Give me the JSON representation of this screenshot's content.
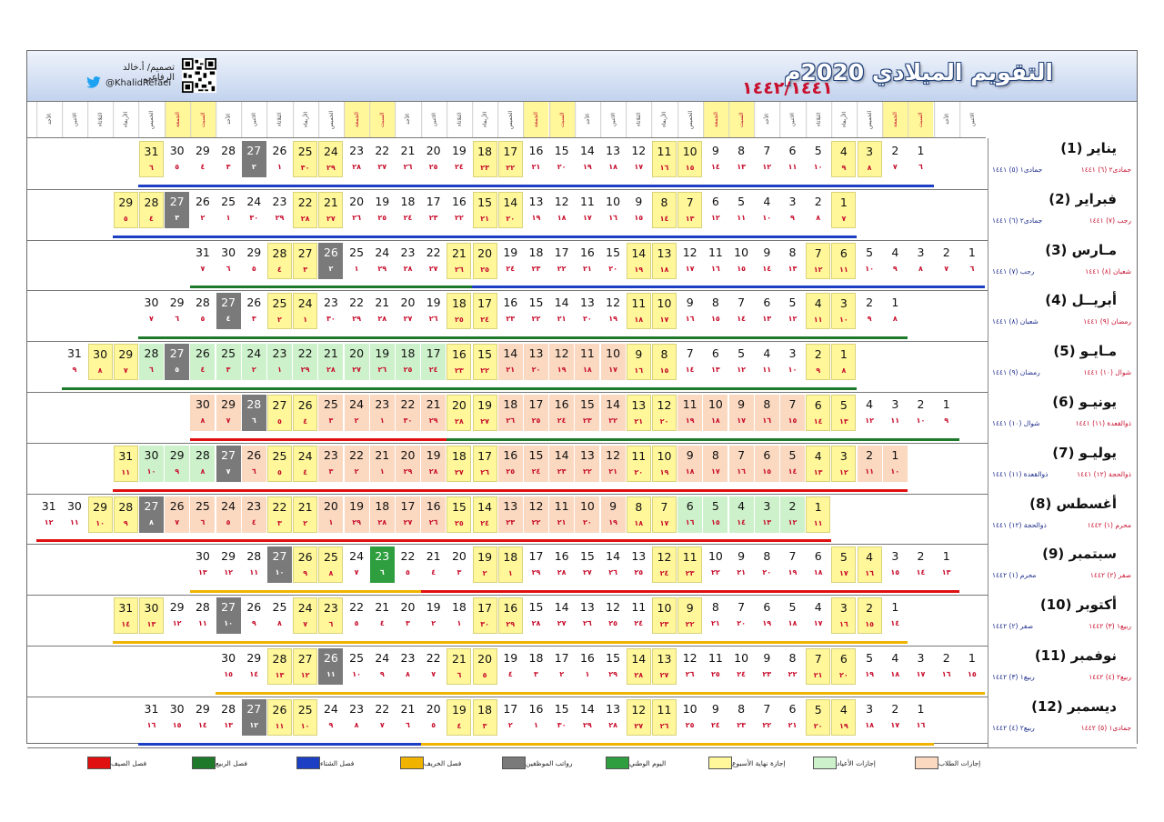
{
  "header": {
    "title": "التقويم الميلادي 2020م",
    "hijri_years": "١٤٤٢/١٤٤١",
    "designer": "تصميم/ أ.خالد الرفاعي",
    "handle": "@KhalidRefaei"
  },
  "day_names": [
    "الاثنين",
    "الأحد",
    "السبت",
    "الجمعة",
    "الخميس",
    "الأربعاء",
    "الثلاثاء",
    "الاثنين",
    "الأحد",
    "السبت",
    "الجمعة",
    "الخميس",
    "الأربعاء",
    "الثلاثاء",
    "الاثنين",
    "الأحد",
    "السبت",
    "الجمعة",
    "الخميس",
    "الأربعاء",
    "الثلاثاء",
    "الاثنين",
    "الأحد",
    "السبت",
    "الجمعة",
    "الخميس",
    "الأربعاء",
    "الثلاثاء",
    "الاثنين",
    "الأحد",
    "السبت",
    "الجمعة",
    "الخميس",
    "الأربعاء",
    "الثلاثاء",
    "الاثنين",
    "الأحد"
  ],
  "weekend_day_columns": [
    2,
    3,
    9,
    10,
    16,
    17,
    23,
    24,
    30,
    31
  ],
  "colors": {
    "weekend": "#fff79a",
    "students": "#fbd8c0",
    "eid": "#cdf2cb",
    "national": "#2e9e3f",
    "payday": "#7a7a7a",
    "winter": "#1d3fc4",
    "spring": "#1e7a2a",
    "summer": "#e01010",
    "autumn": "#f0b400"
  },
  "months": [
    {
      "name": "يناير (1)",
      "start_col": 2,
      "hijri_start": "٦",
      "hijri_left": "جمادى١ (٥) ١٤٤١",
      "hijri_right": "جمادى٢ (٦) ١٤٤١",
      "h": [
        "٦",
        "٧",
        "٨",
        "٩",
        "١٠",
        "١١",
        "١٢",
        "١٣",
        "١٤",
        "١٥",
        "١٦",
        "١٧",
        "١٨",
        "١٩",
        "٢٠",
        "٢١",
        "٢٢",
        "٢٣",
        "٢٤",
        "٢٥",
        "٢٦",
        "٢٧",
        "٢٨",
        "٢٩",
        "٣٠",
        "١",
        "٢",
        "٣",
        "٤",
        "٥",
        "٦"
      ],
      "special": {
        "3": "w",
        "4": "w",
        "10": "w",
        "11": "w",
        "17": "w",
        "18": "w",
        "24": "w",
        "25": "w",
        "27": "p",
        "31": "w"
      },
      "bars": [
        {
          "from": 1,
          "to": 31,
          "season": "winter"
        }
      ]
    },
    {
      "name": "فبراير (2)",
      "start_col": 5,
      "hijri_left": "جمادى٢ (٦) ١٤٤١",
      "hijri_right": "رجب (٧) ١٤٤١",
      "h": [
        "٧",
        "٨",
        "٩",
        "١٠",
        "١١",
        "١٢",
        "١٣",
        "١٤",
        "١٥",
        "١٦",
        "١٧",
        "١٨",
        "١٩",
        "٢٠",
        "٢١",
        "٢٢",
        "٢٣",
        "٢٤",
        "٢٥",
        "٢٦",
        "٢٧",
        "٢٨",
        "٢٩",
        "٣٠",
        "١",
        "٢",
        "٣",
        "٤",
        "٥"
      ],
      "special": {
        "1": "w",
        "7": "w",
        "8": "w",
        "14": "w",
        "15": "w",
        "21": "w",
        "22": "w",
        "27": "p",
        "28": "w",
        "29": "w"
      },
      "bars": [
        {
          "from": 1,
          "to": 29,
          "season": "winter"
        }
      ]
    },
    {
      "name": "مـارس (3)",
      "start_col": 0,
      "hijri_left": "رجب (٧) ١٤٤١",
      "hijri_right": "شعبان (٨) ١٤٤١",
      "h": [
        "٦",
        "٧",
        "٨",
        "٩",
        "١٠",
        "١١",
        "١٢",
        "١٣",
        "١٤",
        "١٥",
        "١٦",
        "١٧",
        "١٨",
        "١٩",
        "٢٠",
        "٢١",
        "٢٢",
        "٢٣",
        "٢٤",
        "٢٥",
        "٢٦",
        "٢٧",
        "٢٨",
        "٢٩",
        "١",
        "٢",
        "٣",
        "٤",
        "٥",
        "٦",
        "٧"
      ],
      "special": {
        "6": "w",
        "7": "w",
        "13": "w",
        "14": "w",
        "20": "w",
        "21": "w",
        "26": "p",
        "27": "w",
        "28": "w"
      },
      "bars": [
        {
          "from": 1,
          "to": 20,
          "season": "winter"
        },
        {
          "from": 21,
          "to": 31,
          "season": "spring"
        }
      ]
    },
    {
      "name": "أبريــل (4)",
      "start_col": 3,
      "hijri_left": "شعبان (٨) ١٤٤١",
      "hijri_right": "رمضان (٩) ١٤٤١",
      "h": [
        "٨",
        "٩",
        "١٠",
        "١١",
        "١٢",
        "١٣",
        "١٤",
        "١٥",
        "١٦",
        "١٧",
        "١٨",
        "١٩",
        "٢٠",
        "٢١",
        "٢٢",
        "٢٣",
        "٢٤",
        "٢٥",
        "٢٦",
        "٢٧",
        "٢٨",
        "٢٩",
        "٣٠",
        "١",
        "٢",
        "٣",
        "٤",
        "٥",
        "٦",
        "٧"
      ],
      "special": {
        "3": "w",
        "4": "w",
        "10": "w",
        "11": "w",
        "17": "w",
        "18": "w",
        "24": "w",
        "25": "w",
        "27": "p"
      },
      "bars": [
        {
          "from": 1,
          "to": 30,
          "season": "spring"
        }
      ]
    },
    {
      "name": "مـايـو (5)",
      "start_col": 5,
      "hijri_left": "رمضان (٩) ١٤٤١",
      "hijri_right": "شوال (١٠) ١٤٤١",
      "h": [
        "٨",
        "٩",
        "١٠",
        "١١",
        "١٢",
        "١٣",
        "١٤",
        "١٥",
        "١٦",
        "١٧",
        "١٨",
        "١٩",
        "٢٠",
        "٢١",
        "٢٢",
        "٢٣",
        "٢٤",
        "٢٥",
        "٢٦",
        "٢٧",
        "٢٨",
        "٢٩",
        "١",
        "٢",
        "٣",
        "٤",
        "٥",
        "٦",
        "٧",
        "٨",
        "٩"
      ],
      "special": {
        "1": "w",
        "2": "w",
        "8": "w",
        "9": "w",
        "10": "s",
        "11": "s",
        "12": "s",
        "13": "s",
        "14": "s",
        "15": "w",
        "16": "w",
        "17": "e",
        "18": "e",
        "19": "e",
        "20": "e",
        "21": "e",
        "22": "e",
        "23": "e",
        "24": "e",
        "25": "e",
        "26": "e",
        "27": "p",
        "28": "e",
        "29": "w",
        "30": "w"
      },
      "bars": [
        {
          "from": 1,
          "to": 31,
          "season": "spring"
        }
      ]
    },
    {
      "name": "يونيـو (6)",
      "start_col": 1,
      "hijri_left": "شوال (١٠) ١٤٤١",
      "hijri_right": "ذوالقعدة (١١) ١٤٤١",
      "h": [
        "٩",
        "١٠",
        "١١",
        "١٢",
        "١٣",
        "١٤",
        "١٥",
        "١٦",
        "١٧",
        "١٨",
        "١٩",
        "٢٠",
        "٢١",
        "٢٢",
        "٢٣",
        "٢٤",
        "٢٥",
        "٢٦",
        "٢٧",
        "٢٨",
        "٢٩",
        "٣٠",
        "١",
        "٢",
        "٣",
        "٤",
        "٥",
        "٦",
        "٧",
        "٨"
      ],
      "special": {
        "5": "w",
        "6": "w",
        "7": "s",
        "8": "s",
        "9": "s",
        "10": "s",
        "11": "s",
        "12": "w",
        "13": "w",
        "14": "s",
        "15": "s",
        "16": "s",
        "17": "s",
        "18": "s",
        "19": "w",
        "20": "w",
        "21": "s",
        "22": "s",
        "23": "s",
        "24": "s",
        "25": "s",
        "26": "w",
        "27": "w",
        "28": "p",
        "29": "s",
        "30": "s"
      },
      "bars": [
        {
          "from": 1,
          "to": 20,
          "season": "spring"
        },
        {
          "from": 21,
          "to": 30,
          "season": "summer"
        }
      ]
    },
    {
      "name": "يوليـو (7)",
      "start_col": 3,
      "hijri_left": "ذوالقعدة (١١) ١٤٤١",
      "hijri_right": "ذوالحجة (١٢) ١٤٤١",
      "h": [
        "١٠",
        "١١",
        "١٢",
        "١٣",
        "١٤",
        "١٥",
        "١٦",
        "١٧",
        "١٨",
        "١٩",
        "٢٠",
        "٢١",
        "٢٢",
        "٢٣",
        "٢٤",
        "٢٥",
        "٢٦",
        "٢٧",
        "٢٨",
        "٢٩",
        "١",
        "٢",
        "٣",
        "٤",
        "٥",
        "٦",
        "٧",
        "٨",
        "٩",
        "١٠",
        "١١"
      ],
      "special": {
        "1": "s",
        "2": "s",
        "3": "w",
        "4": "w",
        "5": "s",
        "6": "s",
        "7": "s",
        "8": "s",
        "9": "s",
        "10": "w",
        "11": "w",
        "12": "s",
        "13": "s",
        "14": "s",
        "15": "s",
        "16": "s",
        "17": "w",
        "18": "w",
        "19": "s",
        "20": "s",
        "21": "s",
        "22": "s",
        "23": "s",
        "24": "w",
        "25": "w",
        "26": "s",
        "27": "p",
        "28": "e",
        "29": "e",
        "30": "e",
        "31": "w"
      },
      "bars": [
        {
          "from": 1,
          "to": 31,
          "season": "summer"
        }
      ]
    },
    {
      "name": "أغسطس (8)",
      "start_col": 6,
      "hijri_left": "ذوالحجة (١٢) ١٤٤١",
      "hijri_right": "محرم (١) ١٤٤٢",
      "h": [
        "١١",
        "١٢",
        "١٣",
        "١٤",
        "١٥",
        "١٦",
        "١٧",
        "١٨",
        "١٩",
        "٢٠",
        "٢١",
        "٢٢",
        "٢٣",
        "٢٤",
        "٢٥",
        "٢٦",
        "٢٧",
        "٢٨",
        "٢٩",
        "١",
        "٢",
        "٣",
        "٤",
        "٥",
        "٦",
        "٧",
        "٨",
        "٩",
        "١٠",
        "١١",
        "١٢"
      ],
      "special": {
        "1": "w",
        "2": "e",
        "3": "e",
        "4": "e",
        "5": "e",
        "6": "e",
        "7": "w",
        "8": "w",
        "9": "s",
        "10": "s",
        "11": "s",
        "12": "s",
        "13": "s",
        "14": "w",
        "15": "w",
        "16": "s",
        "17": "s",
        "18": "s",
        "19": "s",
        "20": "s",
        "21": "w",
        "22": "w",
        "23": "s",
        "24": "s",
        "25": "s",
        "26": "s",
        "27": "p",
        "28": "w",
        "29": "w"
      },
      "bars": [
        {
          "from": 1,
          "to": 31,
          "season": "summer"
        }
      ]
    },
    {
      "name": "سبتمبر (9)",
      "start_col": 1,
      "hijri_left": "محرم (١) ١٤٤٢",
      "hijri_right": "صفر (٢) ١٤٤٢",
      "h": [
        "١٣",
        "١٤",
        "١٥",
        "١٦",
        "١٧",
        "١٨",
        "١٩",
        "٢٠",
        "٢١",
        "٢٢",
        "٢٣",
        "٢٤",
        "٢٥",
        "٢٦",
        "٢٧",
        "٢٨",
        "٢٩",
        "١",
        "٢",
        "٣",
        "٤",
        "٥",
        "٦",
        "٧",
        "٨",
        "٩",
        "١٠",
        "١١",
        "١٢",
        "١٣"
      ],
      "special": {
        "4": "w",
        "5": "w",
        "11": "w",
        "12": "w",
        "18": "w",
        "19": "w",
        "23": "n",
        "25": "w",
        "26": "w",
        "27": "p"
      },
      "bars": [
        {
          "from": 1,
          "to": 21,
          "season": "summer"
        },
        {
          "from": 22,
          "to": 30,
          "season": "autumn"
        }
      ]
    },
    {
      "name": "أكتوبر (10)",
      "start_col": 3,
      "hijri_left": "صفر (٢) ١٤٤٢",
      "hijri_right": "ربيع١ (٣) ١٤٤٢",
      "h": [
        "١٤",
        "١٥",
        "١٦",
        "١٧",
        "١٨",
        "١٩",
        "٢٠",
        "٢١",
        "٢٢",
        "٢٣",
        "٢٤",
        "٢٥",
        "٢٦",
        "٢٧",
        "٢٨",
        "٢٩",
        "٣٠",
        "١",
        "٢",
        "٣",
        "٤",
        "٥",
        "٦",
        "٧",
        "٨",
        "٩",
        "١٠",
        "١١",
        "١٢",
        "١٣",
        "١٤"
      ],
      "special": {
        "2": "w",
        "3": "w",
        "9": "w",
        "10": "w",
        "16": "w",
        "17": "w",
        "23": "w",
        "24": "w",
        "27": "p",
        "30": "w",
        "31": "w"
      },
      "bars": [
        {
          "from": 1,
          "to": 31,
          "season": "autumn"
        }
      ]
    },
    {
      "name": "نوفمبر (11)",
      "start_col": 0,
      "hijri_left": "ربيع١ (٣) ١٤٤٢",
      "hijri_right": "ربيع٢ (٤) ١٤٤٢",
      "h": [
        "١٥",
        "١٦",
        "١٧",
        "١٨",
        "١٩",
        "٢٠",
        "٢١",
        "٢٢",
        "٢٣",
        "٢٤",
        "٢٥",
        "٢٦",
        "٢٧",
        "٢٨",
        "٢٩",
        "١",
        "٢",
        "٣",
        "٤",
        "٥",
        "٦",
        "٧",
        "٨",
        "٩",
        "١٠",
        "١١",
        "١٢",
        "١٣",
        "١٤",
        "١٥"
      ],
      "special": {
        "6": "w",
        "7": "w",
        "13": "w",
        "14": "w",
        "20": "w",
        "21": "w",
        "26": "p",
        "27": "w",
        "28": "w"
      },
      "bars": [
        {
          "from": 1,
          "to": 30,
          "season": "autumn"
        }
      ]
    },
    {
      "name": "ديسمبر (12)",
      "start_col": 2,
      "hijri_left": "ربيع٢ (٤) ١٤٤٢",
      "hijri_right": "جمادى١ (٥) ١٤٤٢",
      "h": [
        "١٦",
        "١٧",
        "١٨",
        "١٩",
        "٢٠",
        "٢١",
        "٢٢",
        "٢٣",
        "٢٤",
        "٢٥",
        "٢٦",
        "٢٧",
        "٢٨",
        "٢٩",
        "٣٠",
        "١",
        "٢",
        "٣",
        "٤",
        "٥",
        "٦",
        "٧",
        "٨",
        "٩",
        "١٠",
        "١١",
        "١٢",
        "١٣",
        "١٤",
        "١٥",
        "١٦"
      ],
      "special": {
        "4": "w",
        "5": "w",
        "11": "w",
        "12": "w",
        "18": "w",
        "19": "w",
        "25": "w",
        "26": "w",
        "27": "p"
      },
      "bars": [
        {
          "from": 1,
          "to": 20,
          "season": "autumn"
        },
        {
          "from": 21,
          "to": 31,
          "season": "winter"
        }
      ]
    }
  ],
  "legend": [
    {
      "label": "إجازات الطلاب",
      "color": "#fbd8c0"
    },
    {
      "label": "إجازات الأعياد",
      "color": "#cdf2cb"
    },
    {
      "label": "إجازة نهاية الأسبوع",
      "color": "#fff79a"
    },
    {
      "label": "اليوم الوطني",
      "color": "#2e9e3f"
    },
    {
      "label": "رواتب الموظفين",
      "color": "#7a7a7a"
    },
    {
      "label": "فصل الخريف",
      "color": "#f0b400"
    },
    {
      "label": "فصل الشتاء",
      "color": "#1d3fc4"
    },
    {
      "label": "فصل الربيع",
      "color": "#1e7a2a"
    },
    {
      "label": "فصل الصيف",
      "color": "#e01010"
    }
  ]
}
